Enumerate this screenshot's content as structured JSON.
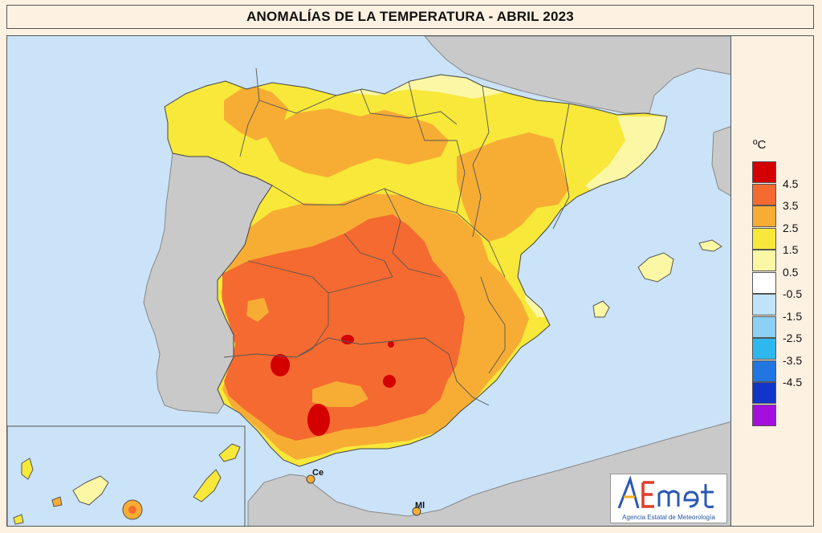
{
  "title": "ANOMALÍAS DE LA TEMPERATURA - ABRIL 2023",
  "legend": {
    "unit": "ºC",
    "boxes": [
      {
        "color": "#d40000"
      },
      {
        "color": "#f56a30"
      },
      {
        "color": "#f7ad34"
      },
      {
        "color": "#f7e83a"
      },
      {
        "color": "#fbf7a4"
      },
      {
        "color": "#ffffff"
      },
      {
        "color": "#bfe3f9"
      },
      {
        "color": "#8cd0f3"
      },
      {
        "color": "#2fb7ef"
      },
      {
        "color": "#2176e0"
      },
      {
        "color": "#1035c8"
      },
      {
        "color": "#a40fde"
      }
    ],
    "labels": [
      "4.5",
      "3.5",
      "2.5",
      "1.5",
      "0.5",
      "-0.5",
      "-1.5",
      "-2.5",
      "-3.5",
      "-4.5"
    ]
  },
  "map": {
    "sea_color": "#cbe3f8",
    "foreign_land_color": "#c9c9c9",
    "cities": [
      {
        "label": "Ce"
      },
      {
        "label": "Ml"
      }
    ]
  },
  "logo": {
    "name": "AEmet",
    "subtitle": "Agencia Estatal de Meteorología"
  }
}
